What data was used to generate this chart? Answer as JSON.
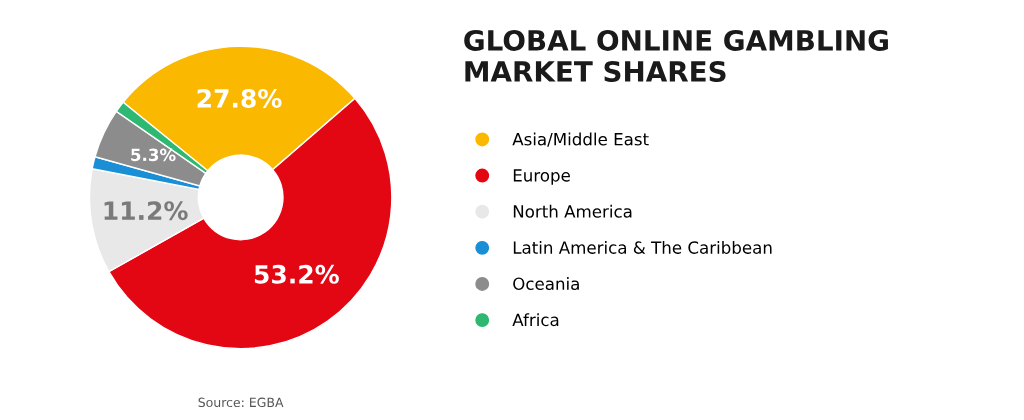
{
  "chart_data": {
    "type": "donut",
    "title": "GLOBAL ONLINE GAMBLING\nMARKET SHARES",
    "categories": [
      "Asia/Middle East",
      "Europe",
      "North America",
      "Latin America & The Caribbean",
      "Oceania",
      "Africa"
    ],
    "values": [
      27.8,
      53.2,
      11.2,
      1.3,
      5.3,
      1.2
    ],
    "colors": [
      "#fbb800",
      "#e30613",
      "#e8e8e8",
      "#1a8fd6",
      "#8c8c8c",
      "#2eb872"
    ],
    "value_labels": [
      "27.8%",
      "53.2%",
      "11.2%",
      null,
      "5.3%",
      null
    ],
    "legend": "right",
    "annotations": [
      "Source: EGBA"
    ]
  }
}
